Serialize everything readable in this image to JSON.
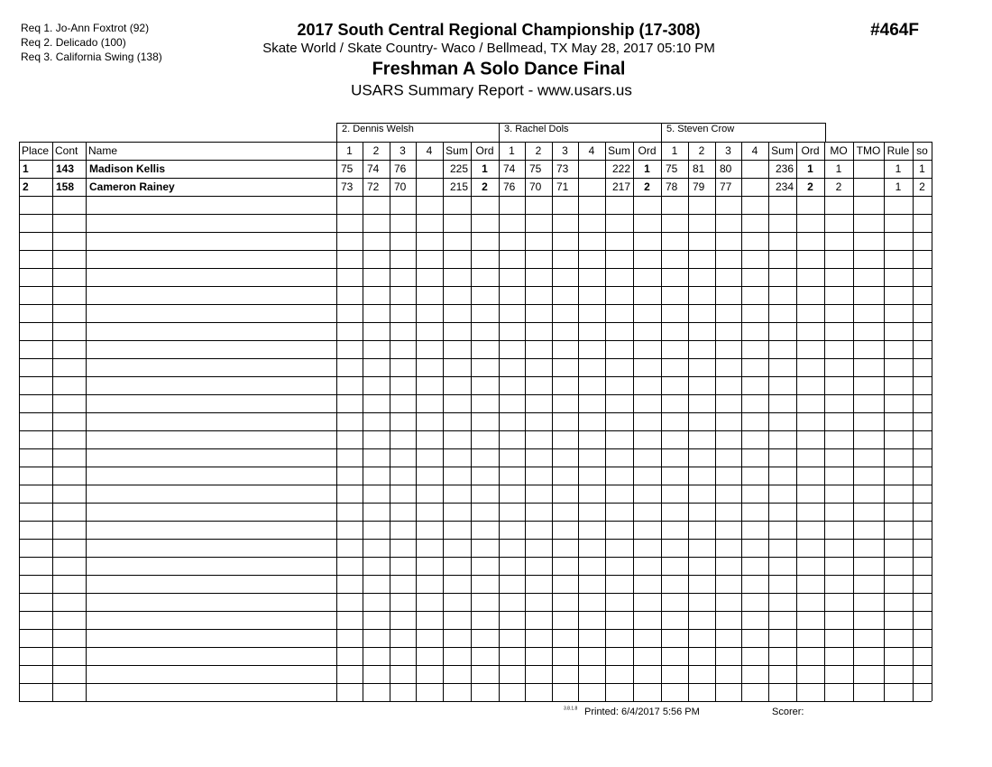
{
  "header": {
    "requests": [
      "Req  1.  Jo-Ann Foxtrot (92)",
      "Req  2.  Delicado (100)",
      "Req  3.  California Swing (138)"
    ],
    "title": "2017 South Central Regional Championship (17-308)",
    "subtitle": "Skate World / Skate Country- Waco / Bellmead, TX  May 28, 2017  05:10 PM",
    "event": "Freshman A Solo Dance Final",
    "report": "USARS Summary Report - www.usars.us",
    "code": "#464F"
  },
  "table": {
    "judges": [
      "2.  Dennis Welsh",
      "3.  Rachel Dols",
      "5.  Steven Crow"
    ],
    "columns": [
      "Place",
      "Cont",
      "Name",
      "1",
      "2",
      "3",
      "4",
      "Sum",
      "Ord",
      "1",
      "2",
      "3",
      "4",
      "Sum",
      "Ord",
      "1",
      "2",
      "3",
      "4",
      "Sum",
      "Ord",
      "MO",
      "TMO",
      "Rule",
      "so"
    ],
    "rows": [
      [
        1,
        143,
        "Madison Kellis",
        75,
        74,
        76,
        null,
        225,
        1,
        74,
        75,
        73,
        null,
        222,
        1,
        75,
        81,
        80,
        null,
        236,
        1,
        1,
        null,
        1,
        1
      ],
      [
        2,
        158,
        "Cameron Rainey",
        73,
        72,
        70,
        null,
        215,
        2,
        76,
        70,
        71,
        null,
        217,
        2,
        78,
        79,
        77,
        null,
        234,
        2,
        2,
        null,
        1,
        2
      ]
    ]
  },
  "footer": {
    "version": "3.8.1.8",
    "printed": "Printed:  6/4/2017  5:56 PM",
    "scorer": "Scorer:"
  }
}
